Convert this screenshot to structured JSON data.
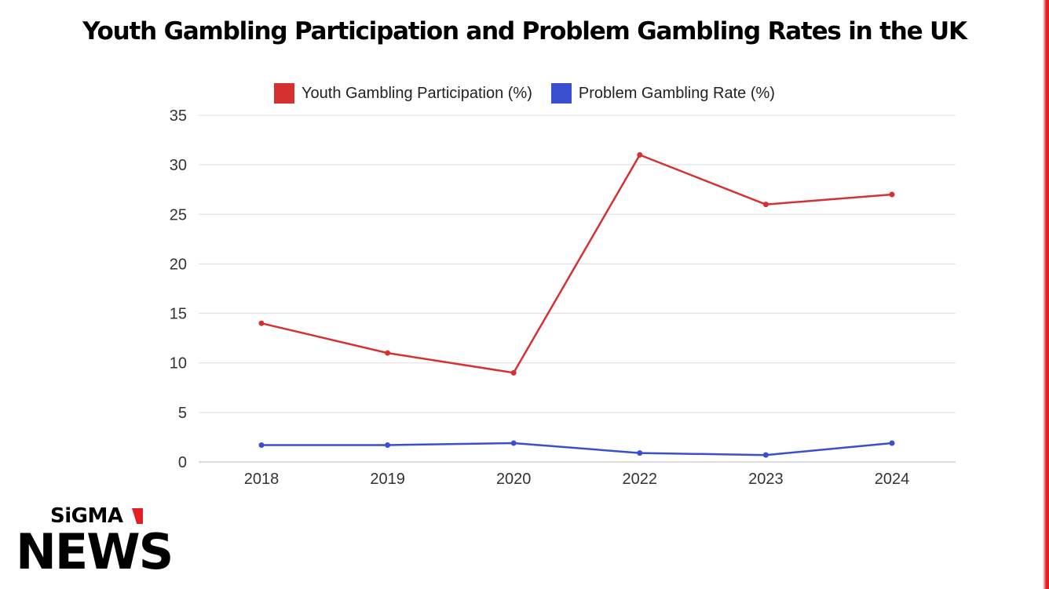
{
  "title": "Youth Gambling Participation and Problem Gambling Rates in the UK",
  "branding": {
    "top": "SiGMA",
    "bottom": "NEWS",
    "accent_color": "#e31e24"
  },
  "colors": {
    "series1": "#d63131",
    "series2": "#3a4fd0",
    "grid": "#dddddd",
    "axis_text": "#333333"
  },
  "chart_data": {
    "type": "line",
    "title": "Youth Gambling Participation and Problem Gambling Rates in the UK",
    "categories": [
      "2018",
      "2019",
      "2020",
      "2022",
      "2023",
      "2024"
    ],
    "series": [
      {
        "name": "Youth Gambling Participation (%)",
        "values": [
          14,
          11,
          9,
          31,
          26,
          27
        ]
      },
      {
        "name": "Problem Gambling Rate (%)",
        "values": [
          1.7,
          1.7,
          1.9,
          0.9,
          0.7,
          1.9
        ]
      }
    ],
    "ylim": [
      0,
      35
    ],
    "yticks": [
      0,
      5,
      10,
      15,
      20,
      25,
      30,
      35
    ],
    "grid": true,
    "legend_position": "top-center"
  }
}
